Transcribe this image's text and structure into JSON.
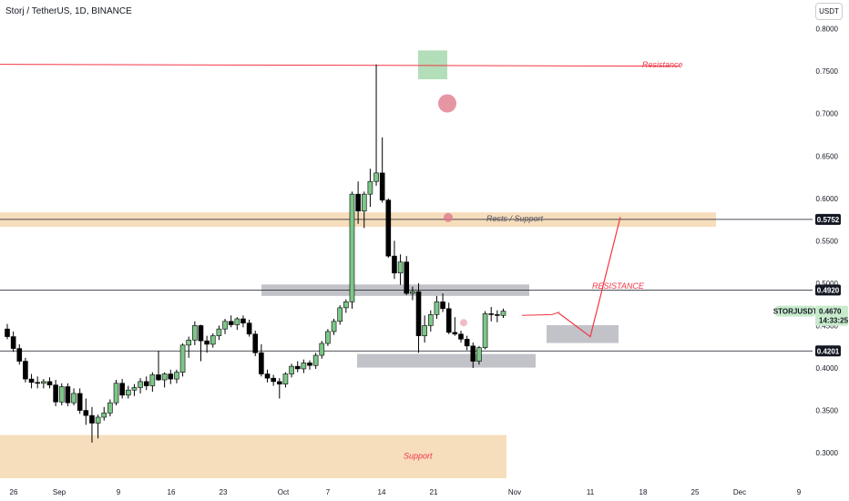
{
  "header": {
    "title": "Storj / TetherUS, 1D, BINANCE",
    "currency_button": "USDT"
  },
  "colors": {
    "up": "#7cc788",
    "down": "#000000",
    "resistance_line": "#f23645",
    "orange_zone": "#f5d7b0",
    "grey_zone": "#b7b9bf",
    "green_box": "#9fd7a8",
    "pink_marker": "#e07a8c",
    "projection": "#f23645",
    "badge_green": "#c8ebcc"
  },
  "chart_data": {
    "type": "candlestick",
    "symbol": "STORJUSDT",
    "ylim": [
      0.275,
      0.815
    ],
    "y_ticks": [
      "0.8000",
      "0.7500",
      "0.7000",
      "0.6500",
      "0.6000",
      "0.5500",
      "0.5000",
      "0.4500",
      "0.4000",
      "0.3500",
      "0.3000"
    ],
    "x_ticks": [
      "26",
      "Sep",
      "9",
      "16",
      "23",
      "Oct",
      "7",
      "14",
      "21",
      "Nov",
      "11",
      "18",
      "25",
      "Dec",
      "9"
    ],
    "candles": [
      [
        0.446,
        0.452,
        0.434,
        0.437
      ],
      [
        0.437,
        0.443,
        0.419,
        0.423
      ],
      [
        0.423,
        0.428,
        0.404,
        0.408
      ],
      [
        0.408,
        0.412,
        0.383,
        0.387
      ],
      [
        0.387,
        0.393,
        0.376,
        0.383
      ],
      [
        0.383,
        0.39,
        0.376,
        0.382
      ],
      [
        0.382,
        0.387,
        0.376,
        0.384
      ],
      [
        0.384,
        0.389,
        0.376,
        0.38
      ],
      [
        0.38,
        0.386,
        0.355,
        0.36
      ],
      [
        0.36,
        0.382,
        0.356,
        0.378
      ],
      [
        0.378,
        0.382,
        0.355,
        0.359
      ],
      [
        0.359,
        0.376,
        0.356,
        0.37
      ],
      [
        0.37,
        0.376,
        0.346,
        0.35
      ],
      [
        0.35,
        0.364,
        0.333,
        0.344
      ],
      [
        0.344,
        0.354,
        0.312,
        0.335
      ],
      [
        0.335,
        0.345,
        0.317,
        0.342
      ],
      [
        0.342,
        0.354,
        0.338,
        0.347
      ],
      [
        0.347,
        0.363,
        0.343,
        0.359
      ],
      [
        0.359,
        0.386,
        0.356,
        0.382
      ],
      [
        0.382,
        0.387,
        0.364,
        0.368
      ],
      [
        0.368,
        0.379,
        0.364,
        0.374
      ],
      [
        0.374,
        0.381,
        0.367,
        0.377
      ],
      [
        0.377,
        0.388,
        0.37,
        0.384
      ],
      [
        0.384,
        0.39,
        0.374,
        0.379
      ],
      [
        0.379,
        0.395,
        0.372,
        0.392
      ],
      [
        0.392,
        0.42,
        0.385,
        0.386
      ],
      [
        0.386,
        0.395,
        0.377,
        0.393
      ],
      [
        0.393,
        0.398,
        0.381,
        0.387
      ],
      [
        0.387,
        0.398,
        0.382,
        0.395
      ],
      [
        0.395,
        0.429,
        0.39,
        0.427
      ],
      [
        0.427,
        0.437,
        0.412,
        0.433
      ],
      [
        0.433,
        0.455,
        0.427,
        0.45
      ],
      [
        0.45,
        0.451,
        0.408,
        0.432
      ],
      [
        0.432,
        0.438,
        0.418,
        0.428
      ],
      [
        0.428,
        0.441,
        0.424,
        0.438
      ],
      [
        0.438,
        0.45,
        0.433,
        0.446
      ],
      [
        0.446,
        0.458,
        0.44,
        0.455
      ],
      [
        0.455,
        0.462,
        0.448,
        0.451
      ],
      [
        0.451,
        0.46,
        0.445,
        0.458
      ],
      [
        0.458,
        0.462,
        0.448,
        0.453
      ],
      [
        0.453,
        0.457,
        0.437,
        0.44
      ],
      [
        0.44,
        0.444,
        0.414,
        0.418
      ],
      [
        0.418,
        0.428,
        0.39,
        0.393
      ],
      [
        0.393,
        0.398,
        0.383,
        0.388
      ],
      [
        0.388,
        0.392,
        0.379,
        0.384
      ],
      [
        0.384,
        0.388,
        0.364,
        0.381
      ],
      [
        0.381,
        0.395,
        0.377,
        0.393
      ],
      [
        0.393,
        0.405,
        0.389,
        0.402
      ],
      [
        0.402,
        0.408,
        0.395,
        0.399
      ],
      [
        0.399,
        0.41,
        0.394,
        0.406
      ],
      [
        0.406,
        0.409,
        0.398,
        0.403
      ],
      [
        0.403,
        0.418,
        0.399,
        0.415
      ],
      [
        0.415,
        0.432,
        0.411,
        0.429
      ],
      [
        0.429,
        0.446,
        0.426,
        0.443
      ],
      [
        0.443,
        0.458,
        0.439,
        0.455
      ],
      [
        0.455,
        0.474,
        0.451,
        0.471
      ],
      [
        0.471,
        0.481,
        0.465,
        0.478
      ],
      [
        0.478,
        0.608,
        0.47,
        0.605
      ],
      [
        0.605,
        0.62,
        0.57,
        0.585
      ],
      [
        0.585,
        0.608,
        0.565,
        0.605
      ],
      [
        0.605,
        0.635,
        0.59,
        0.62
      ],
      [
        0.62,
        0.758,
        0.615,
        0.63
      ],
      [
        0.63,
        0.672,
        0.595,
        0.598
      ],
      [
        0.598,
        0.6,
        0.53,
        0.532
      ],
      [
        0.532,
        0.55,
        0.505,
        0.512
      ],
      [
        0.512,
        0.534,
        0.498,
        0.525
      ],
      [
        0.525,
        0.532,
        0.486,
        0.488
      ],
      [
        0.488,
        0.496,
        0.48,
        0.49
      ],
      [
        0.49,
        0.5,
        0.418,
        0.438
      ],
      [
        0.438,
        0.462,
        0.43,
        0.45
      ],
      [
        0.45,
        0.468,
        0.443,
        0.463
      ],
      [
        0.463,
        0.485,
        0.458,
        0.478
      ],
      [
        0.478,
        0.488,
        0.466,
        0.47
      ],
      [
        0.47,
        0.477,
        0.44,
        0.442
      ],
      [
        0.442,
        0.46,
        0.438,
        0.44
      ],
      [
        0.44,
        0.444,
        0.43,
        0.434
      ],
      [
        0.434,
        0.438,
        0.421,
        0.426
      ],
      [
        0.426,
        0.43,
        0.4,
        0.408
      ],
      [
        0.408,
        0.426,
        0.404,
        0.424
      ],
      [
        0.424,
        0.467,
        0.422,
        0.464
      ],
      [
        0.464,
        0.472,
        0.455,
        0.463
      ],
      [
        0.463,
        0.468,
        0.454,
        0.462
      ],
      [
        0.462,
        0.47,
        0.459,
        0.467
      ]
    ],
    "horizontal_levels": [
      {
        "label": "0.5752",
        "value": 0.5752
      },
      {
        "label": "0.4920",
        "value": 0.492
      },
      {
        "label": "0.4201",
        "value": 0.4201
      }
    ],
    "last_price": {
      "symbol": "STORJUSDT",
      "price": "0.4670",
      "countdown": "14:33:25",
      "value": 0.467
    },
    "annotations": {
      "resistance": "Resistance",
      "rests_support": "Rests / Support",
      "resistance_caps": "RESISTANCE",
      "support": "Support"
    },
    "resistance_level": 0.757
  }
}
